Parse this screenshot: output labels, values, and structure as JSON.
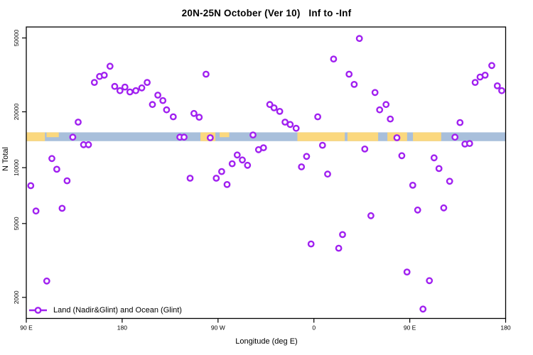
{
  "title": "20N-25N October (Ver 10)   Inf to -Inf",
  "y_axis": {
    "label": "N Total",
    "ticks": [
      2000,
      5000,
      10000,
      20000,
      50000
    ]
  },
  "x_axis": {
    "label": "Longitude (deg E)",
    "ticks": [
      {
        "pos": 90,
        "label": "90 E"
      },
      {
        "pos": 180,
        "label": "180"
      },
      {
        "pos": 270,
        "label": "90 W"
      },
      {
        "pos": 360,
        "label": "0"
      },
      {
        "pos": 450,
        "label": "90 E"
      },
      {
        "pos": 540,
        "label": "180"
      }
    ]
  },
  "legend": {
    "label": "Land (Nadir&Glint) and Ocean (Glint)",
    "marker": "open-circle-on-line"
  },
  "colors": {
    "point": "#A020F0",
    "land": "#FBD87E",
    "ocean": "#A8BFDB",
    "axis": "#000000",
    "background": "#FFFFFF"
  },
  "chart_data": {
    "type": "scatter",
    "title": "20N-25N October (Ver 10)   Inf to -Inf",
    "xlabel": "Longitude (deg E)",
    "ylabel": "N Total",
    "x_axis_note": "longitude unwrapped in deg E: 90 -> 540 (90E, 180, 90W, 0, 90E, 180)",
    "x_range": [
      90,
      540
    ],
    "y_scale": "log",
    "y_range": [
      1540,
      57300
    ],
    "grid": false,
    "legend_position": "bottom-left",
    "map_strip": {
      "value_range": [
        13900,
        15500
      ],
      "land_segments": [
        {
          "from": 90,
          "to": 107.5
        },
        {
          "from": 109,
          "to": 120.5,
          "half": true
        },
        {
          "from": 253.5,
          "to": 267.5
        },
        {
          "from": 271.5,
          "to": 280.5,
          "half": true
        },
        {
          "from": 344.5,
          "to": 389
        },
        {
          "from": 391.5,
          "to": 420.3
        },
        {
          "from": 429,
          "to": 447.5
        },
        {
          "from": 453,
          "to": 479.5
        }
      ]
    },
    "points": [
      [
        168.6,
        35200
      ],
      [
        153.9,
        28800
      ],
      [
        158.8,
        31000
      ],
      [
        163.2,
        31500
      ],
      [
        173.0,
        27400
      ],
      [
        177.9,
        26000
      ],
      [
        182.6,
        27200
      ],
      [
        187.3,
        25600
      ],
      [
        192.8,
        26000
      ],
      [
        198.4,
        26900
      ],
      [
        203.5,
        28800
      ],
      [
        208.4,
        21900
      ],
      [
        213.5,
        24600
      ],
      [
        218.2,
        23000
      ],
      [
        221.7,
        20500
      ],
      [
        228.0,
        18800
      ],
      [
        247.4,
        19600
      ],
      [
        252.3,
        18700
      ],
      [
        258.7,
        31900
      ],
      [
        138.7,
        17600
      ],
      [
        133.6,
        14600
      ],
      [
        143.8,
        13300
      ],
      [
        148.4,
        13300
      ],
      [
        114.0,
        11200
      ],
      [
        118.6,
        9800
      ],
      [
        128.3,
        8500
      ],
      [
        94.2,
        8000
      ],
      [
        99.1,
        5840
      ],
      [
        123.6,
        6040
      ],
      [
        109.2,
        2450
      ],
      [
        234.2,
        14600
      ],
      [
        238.1,
        14600
      ],
      [
        262.7,
        14500
      ],
      [
        302.8,
        15000
      ],
      [
        308.0,
        12500
      ],
      [
        312.7,
        12800
      ],
      [
        243.8,
        8770
      ],
      [
        268.3,
        8770
      ],
      [
        273.4,
        9530
      ],
      [
        278.5,
        8110
      ],
      [
        283.3,
        10500
      ],
      [
        288.0,
        11700
      ],
      [
        292.8,
        11000
      ],
      [
        297.7,
        10300
      ],
      [
        402.7,
        49700
      ],
      [
        378.5,
        38500
      ],
      [
        393.0,
        31900
      ],
      [
        397.8,
        28100
      ],
      [
        417.4,
        25400
      ],
      [
        421.7,
        20500
      ],
      [
        427.7,
        21900
      ],
      [
        431.7,
        18300
      ],
      [
        363.6,
        18800
      ],
      [
        318.6,
        21900
      ],
      [
        322.6,
        21000
      ],
      [
        327.9,
        20100
      ],
      [
        332.9,
        17600
      ],
      [
        337.7,
        17100
      ],
      [
        343.3,
        16300
      ],
      [
        497.2,
        17500
      ],
      [
        511.4,
        28800
      ],
      [
        516.0,
        30800
      ],
      [
        520.7,
        31500
      ],
      [
        527.0,
        35500
      ],
      [
        532.2,
        27600
      ],
      [
        536.3,
        26000
      ],
      [
        492.4,
        14600
      ],
      [
        501.8,
        13400
      ],
      [
        506.2,
        13500
      ],
      [
        437.9,
        14500
      ],
      [
        368.1,
        13200
      ],
      [
        407.8,
        12600
      ],
      [
        353.1,
        11500
      ],
      [
        348.3,
        10100
      ],
      [
        442.5,
        11600
      ],
      [
        472.8,
        11300
      ],
      [
        477.4,
        9890
      ],
      [
        372.9,
        9230
      ],
      [
        452.8,
        8040
      ],
      [
        487.4,
        8450
      ],
      [
        457.4,
        5910
      ],
      [
        481.9,
        6070
      ],
      [
        413.5,
        5510
      ],
      [
        386.9,
        4360
      ],
      [
        357.3,
        3880
      ],
      [
        383.3,
        3680
      ],
      [
        447.4,
        2740
      ],
      [
        468.4,
        2460
      ],
      [
        462.4,
        1730
      ]
    ]
  }
}
